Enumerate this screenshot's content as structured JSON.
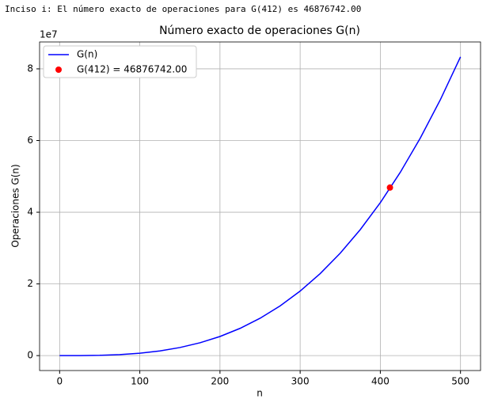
{
  "header": "Inciso i: El número exacto de operaciones para G(412) es 46876742.00",
  "chart_data": {
    "type": "line",
    "title": "Número exacto de operaciones G(n)",
    "xlabel": "n",
    "ylabel": "Operaciones G(n)",
    "y_offset_label": "1e7",
    "x": [
      0,
      25,
      50,
      75,
      100,
      125,
      150,
      175,
      200,
      225,
      250,
      275,
      300,
      325,
      350,
      375,
      400,
      425,
      450,
      475,
      500
    ],
    "series": [
      {
        "name": "G(n)",
        "color": "#0000ff",
        "values": [
          0,
          10417,
          83333,
          281250,
          666667,
          1302083,
          2250000,
          3572917,
          5333333,
          7593750,
          10416667,
          13864583,
          18000000,
          22885417,
          28583333,
          35156250,
          42666667,
          51177083,
          60750000,
          71447917,
          83333333
        ]
      },
      {
        "name": "G(412) = 46876742.00",
        "color": "#ff0000",
        "type": "scatter",
        "x": [
          412
        ],
        "values": [
          46876742
        ]
      }
    ],
    "xlim": [
      -25,
      525
    ],
    "ylim": [
      -4166667,
      87500000
    ],
    "xticks": [
      0,
      100,
      200,
      300,
      400,
      500
    ],
    "yticks": [
      {
        "value": 0,
        "label": "0"
      },
      {
        "value": 20000000,
        "label": "2"
      },
      {
        "value": 40000000,
        "label": "4"
      },
      {
        "value": 60000000,
        "label": "6"
      },
      {
        "value": 80000000,
        "label": "8"
      }
    ],
    "grid": true,
    "legend": "upper-left"
  }
}
